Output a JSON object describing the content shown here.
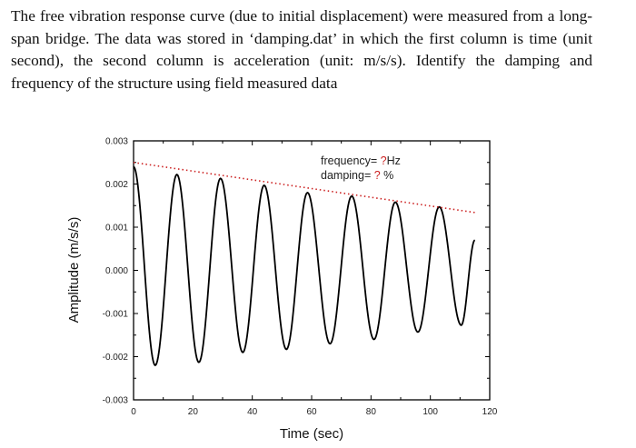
{
  "problem_text": "The free vibration response curve (due to initial displacement) were measured from a long-span bridge. The data was stored in ‘damping.dat’ in which the first column is time (unit second), the second column is acceleration (unit: m/s/s). Identify the damping and frequency of the structure using field measured data",
  "chart_data": {
    "type": "line",
    "title": "",
    "xlabel": "Time (sec)",
    "ylabel": "Amplitude (m/s/s)",
    "xlim": [
      0,
      120
    ],
    "ylim": [
      -0.003,
      0.003
    ],
    "xticks": [
      "0",
      "20",
      "40",
      "60",
      "80",
      "100",
      "120"
    ],
    "yticks": [
      "-0.003",
      "-0.002",
      "-0.001",
      "0.000",
      "0.001",
      "0.002",
      "0.003"
    ],
    "grid": false,
    "series": [
      {
        "style": "solid",
        "color": "#000000",
        "extrema": [
          [
            0,
            0.0024
          ],
          [
            7.3,
            -0.0022
          ],
          [
            14.6,
            0.00222
          ],
          [
            22.0,
            -0.00213
          ],
          [
            29.3,
            0.00213
          ],
          [
            36.8,
            -0.0019
          ],
          [
            44.0,
            0.00197
          ],
          [
            51.5,
            -0.00183
          ],
          [
            58.6,
            0.0018
          ],
          [
            66.2,
            -0.0017
          ],
          [
            73.5,
            0.00172
          ],
          [
            81.0,
            -0.0016
          ],
          [
            88.2,
            0.00158
          ],
          [
            95.8,
            -0.00143
          ],
          [
            103.0,
            0.00147
          ],
          [
            110.4,
            -0.00127
          ],
          [
            115.0,
            0.0007
          ]
        ]
      },
      {
        "style": "dotted",
        "color": "#cc2222",
        "points": [
          [
            0,
            0.0025
          ],
          [
            115,
            0.00134
          ]
        ]
      }
    ],
    "annotations": [
      {
        "prefix": "frequency= ",
        "mark": "?",
        "suffix": "Hz"
      },
      {
        "prefix": "damping= ",
        "mark": "?",
        "suffix": " %"
      }
    ],
    "annotation_mark_color": "#cc2222"
  }
}
